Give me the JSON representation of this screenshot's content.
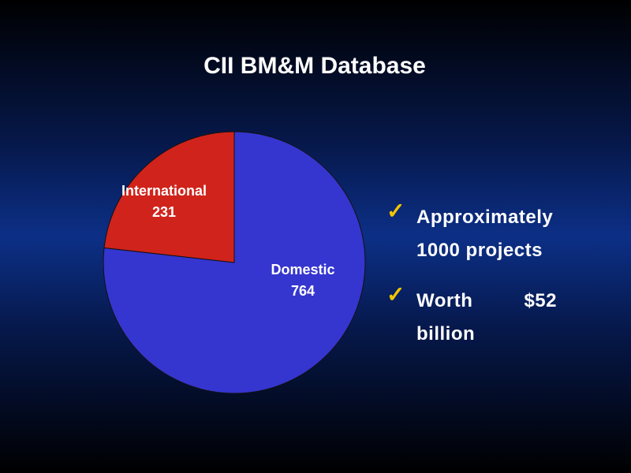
{
  "chart_data": {
    "type": "pie",
    "title": "CII BM&M Database",
    "categories": [
      "Domestic",
      "International"
    ],
    "values": [
      764,
      231
    ],
    "colors": [
      "#3535cf",
      "#d0231b"
    ]
  },
  "bullets": [
    "Approximately 1000 projects",
    "Worth $52 billion"
  ]
}
